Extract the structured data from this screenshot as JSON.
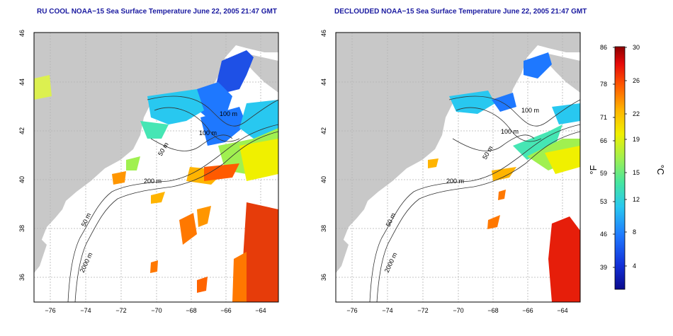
{
  "maps": [
    {
      "title": "RU COOL NOAA−15 Sea Surface Temperature June 22, 2005 21:47 GMT",
      "variant": "raw",
      "x_ticks": [
        "−76",
        "−74",
        "−72",
        "−70",
        "−68",
        "−66",
        "−64"
      ],
      "y_ticks": [
        "46",
        "44",
        "42",
        "40",
        "38",
        "36"
      ],
      "contour_labels": [
        "100 m",
        "100 m",
        "50 m",
        "200 m",
        "50 m",
        "2000 m"
      ]
    },
    {
      "title": "DECLOUDED NOAA−15 Sea Surface Temperature June 22, 2005 21:47 GMT",
      "variant": "declouded",
      "x_ticks": [
        "−76",
        "−74",
        "−72",
        "−70",
        "−68",
        "−66",
        "−64"
      ],
      "y_ticks": [
        "46",
        "44",
        "42",
        "40",
        "38",
        "36"
      ],
      "contour_labels": [
        "100 m",
        "100 m",
        "50 m",
        "200 m",
        "50 m",
        "2000 m"
      ]
    }
  ],
  "colorbar": {
    "unit_f": "°F",
    "unit_c": "°C",
    "f_ticks": [
      "86",
      "78",
      "71",
      "66",
      "59",
      "53",
      "46",
      "39"
    ],
    "c_ticks": [
      "30",
      "26",
      "22",
      "19",
      "15",
      "12",
      "8",
      "4"
    ],
    "colors": [
      "#0a0a8c",
      "#1230d8",
      "#1f78ff",
      "#28c8f0",
      "#46e6a0",
      "#a0f050",
      "#f0f000",
      "#ffb400",
      "#ff5a00",
      "#e60a0a",
      "#8c0000"
    ]
  },
  "palette": {
    "land": "#c8c8c8",
    "ocean": "#ffffff",
    "frame": "#000000",
    "grid": "#b4b4b4",
    "contour": "#333333"
  }
}
